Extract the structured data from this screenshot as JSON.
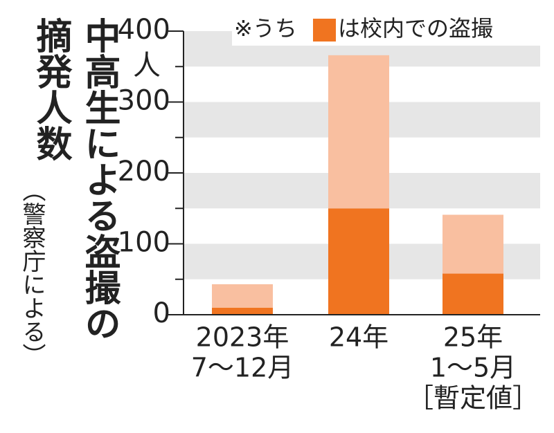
{
  "chart_data": {
    "type": "stacked_bar",
    "title": "中高生による盗撮の摘発人数",
    "subtitle": "（警察庁による）",
    "y_unit": "人",
    "legend_prefix": "※うち",
    "categories": [
      [
        "2023年",
        "7〜12月"
      ],
      [
        "24年"
      ],
      [
        "25年",
        "1〜5月",
        "［暫定値］"
      ]
    ],
    "series": [
      {
        "name": "は校内での盗撮",
        "color": "#f07420",
        "values": [
          10,
          150,
          58
        ]
      },
      {
        "color": "#f9bfa0",
        "values": [
          33,
          216,
          83
        ]
      }
    ],
    "ylim": [
      0,
      400
    ],
    "yticks": [
      0,
      100,
      200,
      300,
      400
    ],
    "banded_grid": true,
    "band_color": "#e6e6e6"
  }
}
